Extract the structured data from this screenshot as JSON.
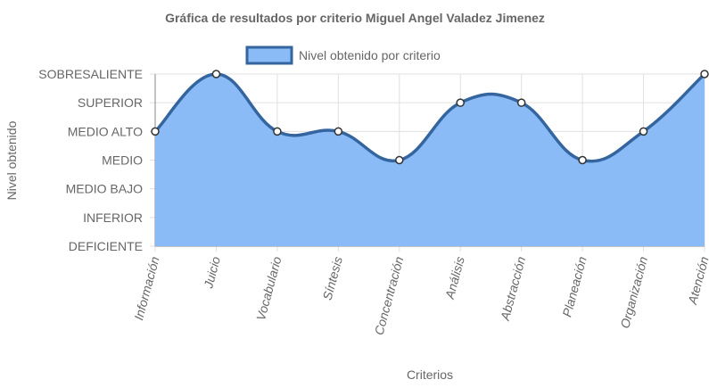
{
  "chart_data": {
    "type": "area",
    "title": "Gráfica de resultados por criterio Miguel Angel Valadez Jimenez",
    "xlabel": "Criterios",
    "ylabel": "Nivel obtenido",
    "categories": [
      "Información",
      "Juicio",
      "Vocabulario",
      "Síntesis",
      "Concentración",
      "Análisis",
      "Abstracción",
      "Planeación",
      "Organización",
      "Atención"
    ],
    "y_levels": [
      "DEFICIENTE",
      "INFERIOR",
      "MEDIO BAJO",
      "MEDIO",
      "MEDIO ALTO",
      "SUPERIOR",
      "SOBRESALIENTE"
    ],
    "series": [
      {
        "name": "Nivel obtenido por criterio",
        "values": [
          4,
          6,
          4,
          4,
          3,
          5,
          5,
          3,
          4,
          6
        ]
      }
    ],
    "ylim": [
      0,
      6
    ],
    "grid": true,
    "legend_position": "top",
    "colors": {
      "fill": "#8ABBF7",
      "line": "#34659E",
      "point_fill": "#ffffff",
      "point_stroke": "#333333",
      "grid": "#e0e0e0",
      "axis": "#888888"
    }
  }
}
